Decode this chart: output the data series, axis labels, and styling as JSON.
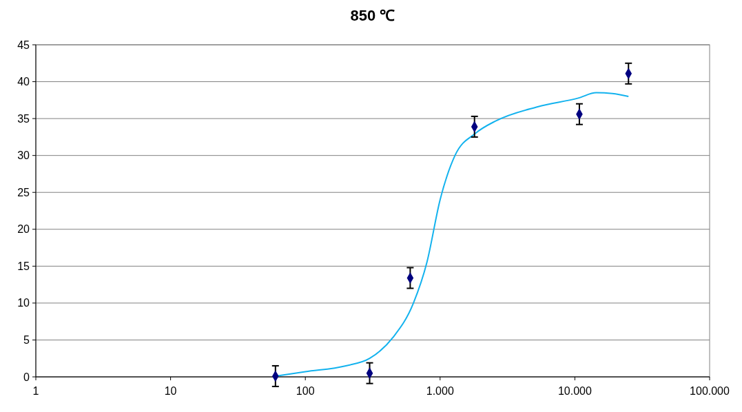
{
  "chart_data": {
    "type": "scatter",
    "title": "850 ℃",
    "log": "x",
    "grid": "y",
    "xlim": [
      1,
      100000
    ],
    "ylim": [
      0,
      45
    ],
    "xticks": [
      1,
      10,
      100,
      {
        "value": 1000,
        "label": "1.000"
      },
      {
        "value": 10000,
        "label": "10.000"
      },
      {
        "value": 100000,
        "label": "100.000"
      }
    ],
    "yticks": [
      0,
      5,
      10,
      15,
      20,
      25,
      30,
      35,
      40,
      45
    ],
    "series": [
      {
        "type": "line",
        "color": "#12b2ee",
        "marker": "none",
        "line_style": "solid",
        "x": [
          60,
          100,
          200,
          300,
          445,
          634,
          800,
          1000,
          1290,
          1830,
          2600,
          5300,
          10700,
          14400,
          19000,
          25000
        ],
        "values": [
          0.1,
          0.7,
          1.5,
          2.5,
          5.3,
          10,
          15.6,
          24,
          30,
          33,
          34.7,
          36.6,
          37.8,
          38.5,
          38.4,
          38.0
        ]
      },
      {
        "color": "#000080",
        "marker": "diamond",
        "x": [
          60,
          300,
          600,
          1800,
          10800,
          25000
        ],
        "values": [
          0.1,
          0.5,
          13.4,
          33.9,
          35.6,
          41.1
        ],
        "errors": [
          1.4,
          1.4,
          1.4,
          1.4,
          1.4,
          1.4
        ]
      }
    ]
  }
}
